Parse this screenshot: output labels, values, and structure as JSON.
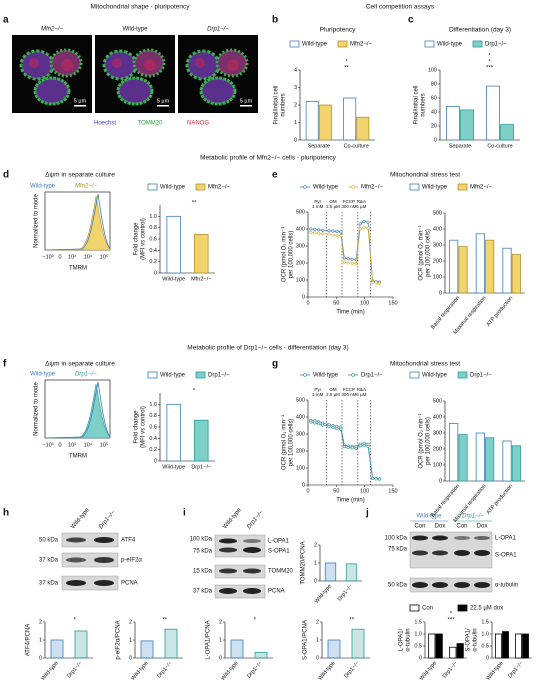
{
  "headers": [
    "Mitochondrial shape - pluripotency",
    "Cell competition assays",
    "Metabolic profile of Mfn2−/− cells - pluripotency",
    "Metabolic profile of Drp1−/− cells - differentiation (day 3)"
  ],
  "panel_letters": [
    "a",
    "b",
    "c",
    "d",
    "e",
    "f",
    "g",
    "h",
    "i",
    "j"
  ],
  "subtitles": [
    "Δψm in separate culture",
    "Mitochondrial stress test",
    "Δψm in separate culture",
    "Mitochondrial stress test"
  ],
  "panel_a": {
    "image_labels": [
      "Mfn2−/−",
      "Wild-type",
      "Drp1−/−"
    ],
    "scale_bar": "5 µm",
    "channels": [
      "Hoechst",
      "TOMM20",
      "NANOG"
    ]
  },
  "histograms": [
    {
      "legend": [
        "Wild-type",
        "Mfn2−/−"
      ],
      "ylabel": "Normalized to mode",
      "xlabel": "TMRM",
      "xticks": [
        "−10³",
        "0",
        "10³",
        "10⁴",
        "10⁵"
      ]
    },
    {
      "legend": [
        "Wild-type",
        "Drp1−/−"
      ],
      "ylabel": "Normalized to mode",
      "xlabel": "TMRM",
      "xticks": [
        "−10³",
        "0",
        "10³",
        "10⁴",
        "10⁵"
      ]
    }
  ],
  "blots": {
    "h": {
      "lanes": [
        "Wild-type",
        "Drp1−/−"
      ],
      "markers": [
        "50 kDa",
        "37 kDa",
        "37 kDa"
      ],
      "bands": [
        "ATF4",
        "p-eIF2α",
        "PCNA"
      ]
    },
    "i": {
      "lanes": [
        "Wild-type",
        "Drp1−/−"
      ],
      "markers": [
        "100 kDa",
        "75 kDa",
        "15 kDa",
        "37 kDa"
      ],
      "bands": [
        "L-OPA1",
        "S-OPA1",
        "TOMM20",
        "PCNA"
      ]
    },
    "j": {
      "groups": [
        "Wild-type",
        "Drp1−/−"
      ],
      "lanes": [
        "Con",
        "Dox",
        "Con",
        "Dox"
      ],
      "markers": [
        "100 kDa",
        "75 kDa",
        "50 kDa"
      ],
      "bands": [
        "L-OPA1",
        "S-OPA1",
        "α-tubulin"
      ]
    }
  },
  "chart_data": [
    {
      "type": "bar",
      "title": "Pluripotency",
      "ylabel": [
        "Final/initial cell",
        "numbers"
      ],
      "categories": [
        "Separate",
        "Co-culture"
      ],
      "series": [
        {
          "name": "Wild-type",
          "color": "#ffffff",
          "edgecolor": "#3d7ebf",
          "values": [
            2.2,
            2.4
          ]
        },
        {
          "name": "Mfn2−/−",
          "color": "#f2d46f",
          "edgecolor": "#b3902a",
          "values": [
            2.0,
            1.3
          ]
        }
      ],
      "ylim": [
        0,
        4
      ],
      "yticks": [
        0,
        1,
        2,
        3,
        4
      ],
      "legend": "top",
      "annotations": [
        "**",
        "*"
      ]
    },
    {
      "type": "bar",
      "title": "Differentiation (day 3)",
      "ylabel": [
        "Final/initial cell",
        "numbers"
      ],
      "categories": [
        "Separate",
        "Co-culture"
      ],
      "series": [
        {
          "name": "Wild-type",
          "color": "#ffffff",
          "edgecolor": "#3d7ebf",
          "values": [
            48,
            77
          ]
        },
        {
          "name": "Drp1−/−",
          "color": "#7fcfc9",
          "edgecolor": "#2a9b93",
          "values": [
            43,
            22
          ]
        }
      ],
      "ylim": [
        0,
        100
      ],
      "yticks": [
        0,
        20,
        40,
        60,
        80,
        100
      ],
      "legend": "top",
      "annotations": [
        "***",
        "*",
        "*"
      ]
    },
    {
      "type": "bar",
      "ylabel": [
        "Fold change",
        "(MFI vs control)"
      ],
      "categories": [
        "Wild-type",
        "Mfn2−/−"
      ],
      "values": [
        1.0,
        0.68
      ],
      "colors": [
        "#ffffff",
        "#f2d46f"
      ],
      "edgecolors": [
        "#3d7ebf",
        "#b3902a"
      ],
      "ylim": [
        0,
        1.2
      ],
      "yticks": [
        0,
        0.2,
        0.4,
        0.6,
        0.8,
        {
          "value": 1,
          "label": "1.0"
        }
      ],
      "legend": "top",
      "annotations": [
        "**"
      ]
    },
    {
      "type": "line",
      "ylabel": [
        "OCR (pmol O₂ min⁻¹",
        "per 100,000 cells)"
      ],
      "xlabel": "Time (min)",
      "x": [
        5,
        12,
        19,
        26,
        37,
        44,
        51,
        58,
        64,
        71,
        78,
        85,
        92,
        99,
        106,
        114,
        120,
        126
      ],
      "series": [
        {
          "name": "Wild-type",
          "color": "#3d7ebf",
          "values": [
            400,
            398,
            395,
            392,
            390,
            388,
            385,
            383,
            230,
            225,
            222,
            220,
            430,
            445,
            440,
            95,
            90,
            88
          ]
        },
        {
          "name": "Mfn2−/−",
          "color": "#d9b43a",
          "values": [
            380,
            378,
            375,
            372,
            370,
            365,
            362,
            360,
            205,
            200,
            198,
            196,
            400,
            410,
            405,
            85,
            82,
            80
          ]
        }
      ],
      "injections": [
        {
          "x": 33,
          "label": [
            "Pyr",
            "1 mM"
          ]
        },
        {
          "x": 60,
          "label": [
            "OM",
            "2.5 µM"
          ]
        },
        {
          "x": 88,
          "label": [
            "FCCP",
            "300 nM"
          ]
        },
        {
          "x": 110,
          "label": [
            "R&A",
            "6 µM"
          ]
        }
      ],
      "xlim": [
        0,
        150
      ],
      "xticks": [
        0,
        50,
        100,
        150
      ],
      "ylim": [
        0,
        500
      ],
      "yticks": [
        0,
        100,
        200,
        300,
        400,
        500
      ],
      "legend": "top"
    },
    {
      "type": "bar",
      "ylabel": [
        "OCR (pmol O₂ min⁻¹",
        "per 100,000 cells)"
      ],
      "categories": [
        "Basal respiration",
        "Maximal respiration",
        "ATP production"
      ],
      "series": [
        {
          "name": "Wild-type",
          "color": "#ffffff",
          "edgecolor": "#3d7ebf",
          "values": [
            330,
            370,
            280
          ]
        },
        {
          "name": "Mfn2−/−",
          "color": "#f2d46f",
          "edgecolor": "#b3902a",
          "values": [
            290,
            330,
            240
          ]
        }
      ],
      "ylim": [
        0,
        500
      ],
      "yticks": [
        0,
        100,
        200,
        300,
        400,
        500
      ],
      "legend": "top"
    },
    {
      "type": "bar",
      "ylabel": [
        "Fold change",
        "(MFI vs control)"
      ],
      "categories": [
        "Wild-type",
        "Drp1−/−"
      ],
      "values": [
        1.0,
        0.72
      ],
      "colors": [
        "#ffffff",
        "#7fcfc9"
      ],
      "edgecolors": [
        "#3d7ebf",
        "#2a9b93"
      ],
      "ylim": [
        0,
        1.2
      ],
      "yticks": [
        0,
        0.2,
        0.4,
        0.6,
        0.8,
        {
          "value": 1,
          "label": "1.0"
        }
      ],
      "legend": "top",
      "annotations": [
        "*"
      ]
    },
    {
      "type": "line",
      "ylabel": [
        "OCR (pmol O₂ min⁻¹",
        "per 100,000 cells)"
      ],
      "xlabel": "Time (min)",
      "x": [
        5,
        12,
        19,
        26,
        37,
        44,
        51,
        58,
        64,
        71,
        78,
        85,
        92,
        99,
        106,
        114,
        120,
        126
      ],
      "series": [
        {
          "name": "Wild-type",
          "color": "#3d7ebf",
          "values": [
            380,
            378,
            372,
            365,
            355,
            350,
            345,
            340,
            235,
            230,
            228,
            225,
            240,
            245,
            240,
            40,
            38,
            36
          ]
        },
        {
          "name": "Drp1−/−",
          "color": "#2a9b93",
          "values": [
            370,
            365,
            360,
            352,
            345,
            338,
            332,
            328,
            225,
            220,
            218,
            215,
            230,
            232,
            228,
            38,
            35,
            34
          ]
        }
      ],
      "injections": [
        {
          "x": 33,
          "label": [
            "Pyr",
            "1 mM"
          ]
        },
        {
          "x": 60,
          "label": [
            "OM",
            "2.5 µM"
          ]
        },
        {
          "x": 88,
          "label": [
            "FCCP",
            "300 nM"
          ]
        },
        {
          "x": 110,
          "label": [
            "R&A",
            "6 µM"
          ]
        }
      ],
      "xlim": [
        0,
        150
      ],
      "xticks": [
        0,
        50,
        100,
        150
      ],
      "ylim": [
        0,
        500
      ],
      "yticks": [
        0,
        100,
        200,
        300,
        400,
        500
      ],
      "legend": "top"
    },
    {
      "type": "bar",
      "ylabel": [
        "OCR (pmol O₂ min⁻¹",
        "per 100,000 cells)"
      ],
      "categories": [
        "Basal respiration",
        "Maximal respiration",
        "ATP production"
      ],
      "series": [
        {
          "name": "Wild-type",
          "color": "#ffffff",
          "edgecolor": "#3d7ebf",
          "values": [
            360,
            300,
            250
          ]
        },
        {
          "name": "Drp1−/−",
          "color": "#7fcfc9",
          "edgecolor": "#2a9b93",
          "values": [
            290,
            270,
            220
          ]
        }
      ],
      "ylim": [
        0,
        500
      ],
      "yticks": [
        0,
        100,
        200,
        300,
        400,
        500
      ],
      "legend": "top"
    },
    {
      "type": "bar",
      "ylabel": "ATF4/PCNA",
      "categories": [
        "Wild-type",
        "Drp1−/−"
      ],
      "values": [
        1.0,
        1.5
      ],
      "colors": [
        "#3d7ebf",
        "#2a9b93"
      ],
      "edgecolors": [
        "#3d7ebf",
        "#2a9b93"
      ],
      "ylim": [
        0,
        2
      ],
      "yticks": [
        0,
        1,
        2
      ],
      "annotations": [
        "*"
      ]
    },
    {
      "type": "bar",
      "ylabel": "p-eIF2α/PCNA",
      "categories": [
        "Wild-type",
        "Drp1−/−"
      ],
      "values": [
        0.95,
        1.6
      ],
      "colors": [
        "#3d7ebf",
        "#2a9b93"
      ],
      "edgecolors": [
        "#3d7ebf",
        "#2a9b93"
      ],
      "ylim": [
        0,
        2
      ],
      "yticks": [
        0,
        1,
        2
      ],
      "annotations": [
        "**"
      ]
    },
    {
      "type": "bar",
      "ylabel": "TOMM20/PCNA",
      "categories": [
        "Wild-type",
        "Drp1−/−"
      ],
      "values": [
        1.0,
        0.95
      ],
      "colors": [
        "#3d7ebf",
        "#2a9b93"
      ],
      "edgecolors": [
        "#3d7ebf",
        "#2a9b93"
      ],
      "ylim": [
        0,
        2
      ],
      "yticks": [
        0,
        1,
        2
      ]
    },
    {
      "type": "bar",
      "ylabel": "L-OPA1/PCNA",
      "categories": [
        "Wild-type",
        "Drp1−/−"
      ],
      "values": [
        1.0,
        0.3
      ],
      "colors": [
        "#3d7ebf",
        "#2a9b93"
      ],
      "edgecolors": [
        "#3d7ebf",
        "#2a9b93"
      ],
      "ylim": [
        0,
        2
      ],
      "yticks": [
        0,
        1,
        2
      ],
      "annotations": [
        "*"
      ]
    },
    {
      "type": "bar",
      "ylabel": "S-OPA1/PCNA",
      "categories": [
        "Wild-type",
        "Drp1−/−"
      ],
      "values": [
        1.0,
        1.6
      ],
      "colors": [
        "#3d7ebf",
        "#2a9b93"
      ],
      "edgecolors": [
        "#3d7ebf",
        "#2a9b93"
      ],
      "ylim": [
        0,
        2
      ],
      "yticks": [
        0,
        1,
        2
      ],
      "annotations": [
        "**"
      ]
    },
    {
      "type": "bar",
      "ylabel": [
        "L-OPA1/",
        "α-tubulin"
      ],
      "categories": [
        "Wild-type",
        "Drp1−/−"
      ],
      "series": [
        {
          "name": "Con",
          "color": "#ffffff",
          "edgecolor": "#000000",
          "values": [
            1.0,
            0.45
          ]
        },
        {
          "name": "22.5 µM dox",
          "color": "#000000",
          "edgecolor": "#000000",
          "values": [
            1.0,
            0.6
          ]
        }
      ],
      "ylim": [
        0,
        1.5
      ],
      "yticks": [
        0,
        0.5,
        {
          "value": 1,
          "label": "1.0"
        },
        1.5
      ],
      "legend": "top",
      "annotations": [
        "***",
        "*"
      ]
    },
    {
      "type": "bar",
      "ylabel": [
        "S-OPA1/",
        "α-tubulin"
      ],
      "categories": [
        "Wild-type",
        "Drp1−/−"
      ],
      "series": [
        {
          "name": "Con",
          "color": "#ffffff",
          "edgecolor": "#000000",
          "values": [
            1.0,
            1.0
          ]
        },
        {
          "name": "22.5 µM dox",
          "color": "#000000",
          "edgecolor": "#000000",
          "values": [
            1.1,
            1.0
          ]
        }
      ],
      "ylim": [
        0,
        1.5
      ],
      "yticks": [
        0,
        0.5,
        {
          "value": 1,
          "label": "1.0"
        },
        1.5
      ]
    }
  ]
}
